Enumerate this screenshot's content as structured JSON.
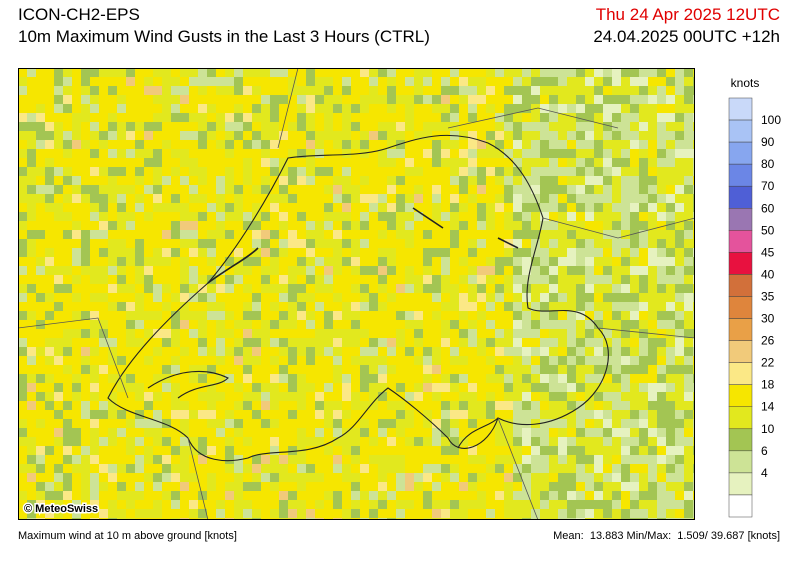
{
  "header": {
    "model": "ICON-CH2-EPS",
    "title": "10m Maximum Wind Gusts in the Last 3 Hours (CTRL)",
    "valid_time": "Thu 24 Apr 2025 12UTC",
    "run": "24.04.2025 00UTC +12h"
  },
  "map": {
    "credit": "© MeteoSwiss"
  },
  "legend": {
    "unit": "knots",
    "labels": [
      100,
      90,
      80,
      70,
      60,
      50,
      45,
      40,
      35,
      30,
      26,
      22,
      18,
      14,
      10,
      6,
      4
    ],
    "colors": [
      "#c9d9f9",
      "#a9c3f5",
      "#87a6ef",
      "#6b86e6",
      "#4f5fd6",
      "#9a76b2",
      "#e4539c",
      "#e8113f",
      "#d2703a",
      "#df853c",
      "#e9a047",
      "#f1ca7a",
      "#fbe886",
      "#f6e600",
      "#e2e81e",
      "#a3c553",
      "#cde396",
      "#e6f2bf",
      "#ffffff"
    ]
  },
  "footer": {
    "left": "Maximum wind at 10 m above ground [knots]",
    "right": "Mean:  13.883 Min/Max:  1.509/ 39.687 [knots]"
  }
}
